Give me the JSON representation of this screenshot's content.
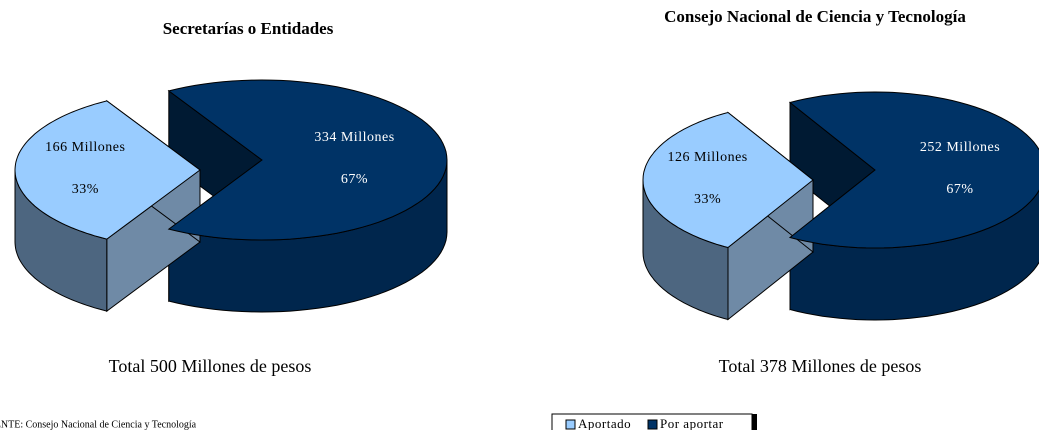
{
  "chart_data": [
    {
      "type": "pie",
      "title": "Secretarías o Entidades",
      "categories": [
        "Aportado",
        "Por aportar"
      ],
      "values": [
        166,
        334
      ],
      "value_labels": [
        "166  Millones",
        "334  Millones"
      ],
      "percent_labels": [
        "33%",
        "67%"
      ],
      "colors": [
        "#99ccff",
        "#003366"
      ],
      "total_label": "Total  500 Millones de pesos"
    },
    {
      "type": "pie",
      "title": "Consejo Nacional de Ciencia y Tecnología",
      "categories": [
        "Aportado",
        "Por aportar"
      ],
      "values": [
        126,
        252
      ],
      "value_labels": [
        "126  Millones",
        "252  Millones"
      ],
      "percent_labels": [
        "33%",
        "67%"
      ],
      "colors": [
        "#99ccff",
        "#003366"
      ],
      "total_label": "Total  378 Millones de pesos"
    }
  ],
  "source": "FUENTE: Consejo Nacional de Ciencia y Tecnología"
}
